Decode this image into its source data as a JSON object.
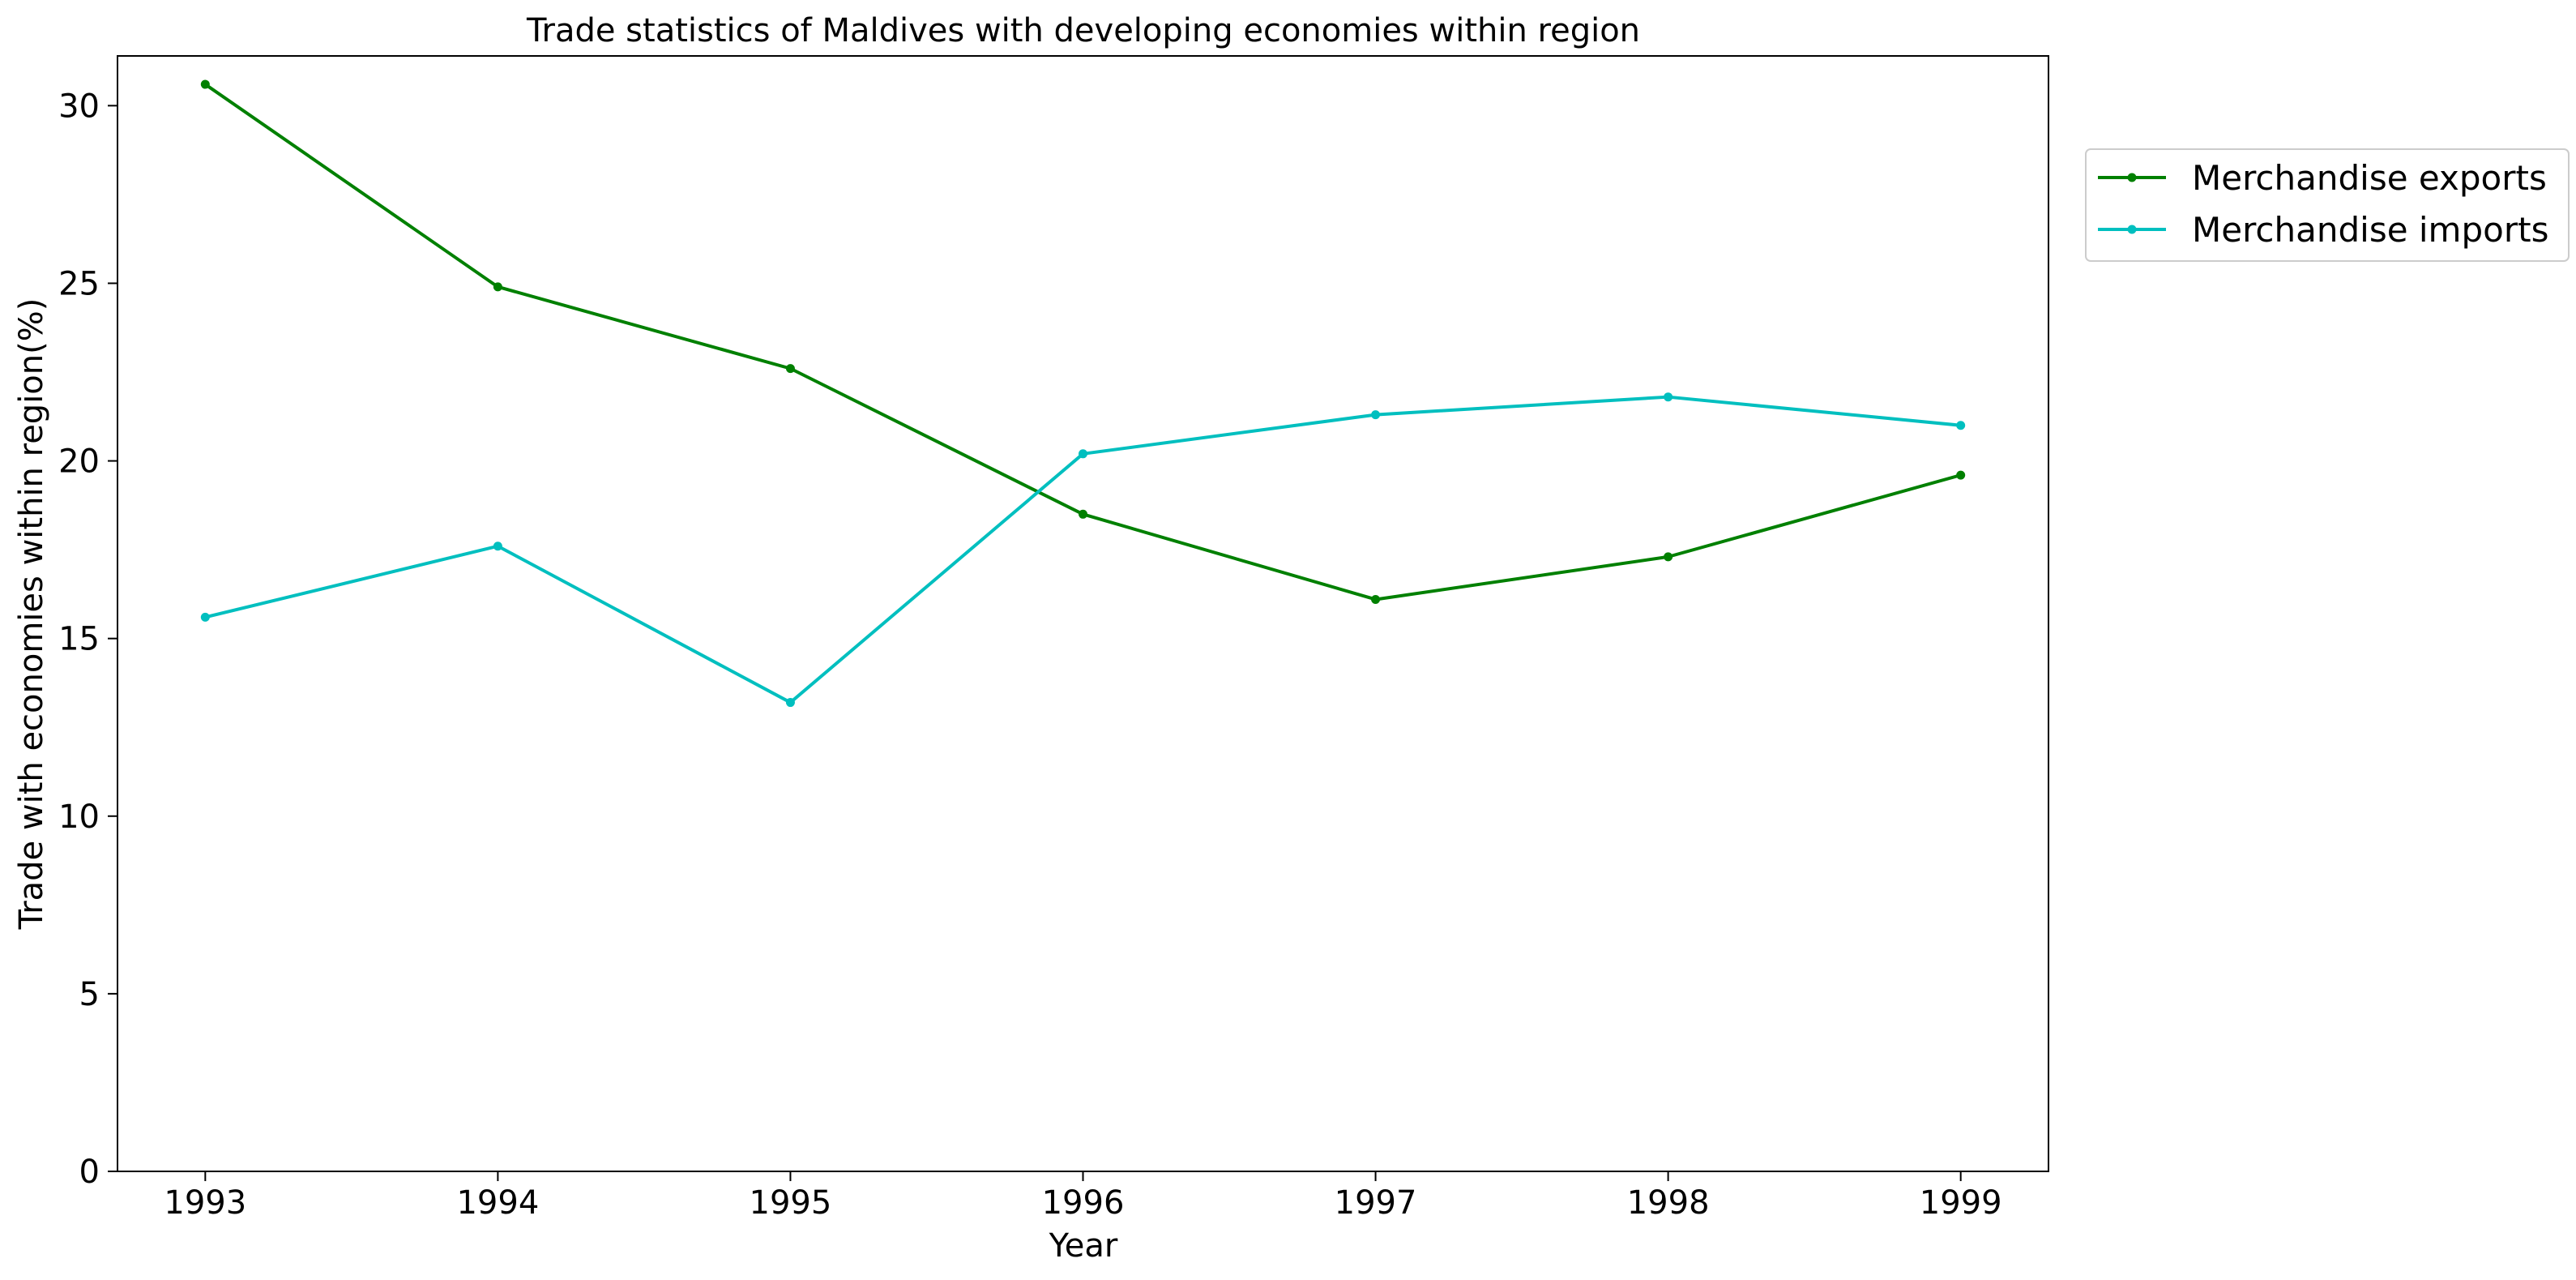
{
  "chart_data": {
    "type": "line",
    "title": "Trade statistics of Maldives with developing economies within region",
    "xlabel": "Year",
    "ylabel": "Trade with economies within region(%)",
    "x": [
      "1993",
      "1994",
      "1995",
      "1996",
      "1997",
      "1998",
      "1999"
    ],
    "xlim": [
      1992.7,
      1999.3
    ],
    "ylim": [
      0,
      31.4
    ],
    "yticks": [
      0,
      5,
      10,
      15,
      20,
      25,
      30
    ],
    "grid": false,
    "legend_position": "outside-top-right",
    "series": [
      {
        "name": "Merchandise exports",
        "color": "#008000",
        "values": [
          30.6,
          24.9,
          22.6,
          18.5,
          16.1,
          17.3,
          19.6
        ]
      },
      {
        "name": "Merchandise imports",
        "color": "#00BFBF",
        "values": [
          15.6,
          17.6,
          13.2,
          20.2,
          21.3,
          21.8,
          21.0
        ]
      }
    ]
  }
}
